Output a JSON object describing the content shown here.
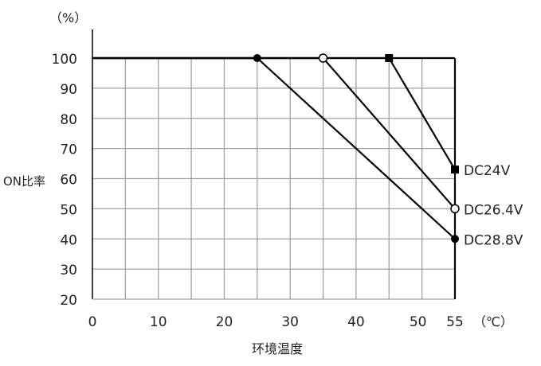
{
  "chart_data": {
    "type": "line",
    "ylabel": "ON比率",
    "yunit": "（%）",
    "xlabel": "环境温度",
    "xunit": "（℃）",
    "xlim": [
      0,
      55
    ],
    "ylim": [
      20,
      100
    ],
    "xticks": [
      0,
      10,
      20,
      30,
      40,
      50,
      55
    ],
    "yticks": [
      20,
      30,
      40,
      50,
      60,
      70,
      80,
      90,
      100
    ],
    "grid": true,
    "series": [
      {
        "name": "DC24V",
        "marker": "filled-square",
        "x": [
          0,
          45,
          55
        ],
        "y": [
          100,
          100,
          63
        ]
      },
      {
        "name": "DC26.4V",
        "marker": "open-circle",
        "x": [
          0,
          35,
          55
        ],
        "y": [
          100,
          100,
          50
        ]
      },
      {
        "name": "DC28.8V",
        "marker": "filled-circle",
        "x": [
          0,
          25,
          55
        ],
        "y": [
          100,
          100,
          40
        ]
      }
    ],
    "colors": {
      "line": "#000000",
      "grid": "#a0a0a0"
    }
  }
}
